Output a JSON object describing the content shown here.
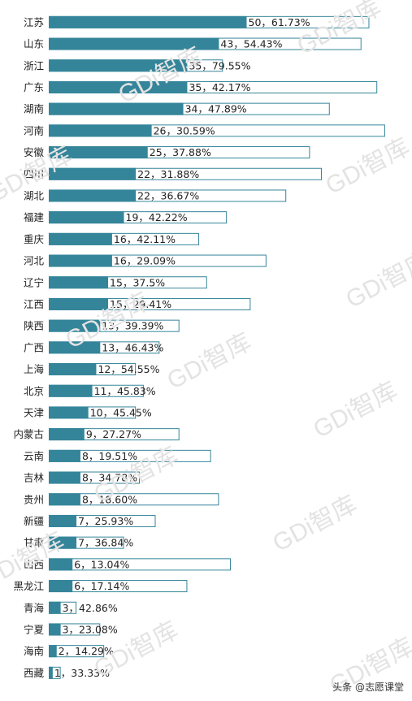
{
  "chart_data": {
    "type": "bar",
    "orientation": "horizontal",
    "categories": [
      "江苏",
      "山东",
      "浙江",
      "广东",
      "湖南",
      "河南",
      "安徽",
      "四川",
      "湖北",
      "福建",
      "重庆",
      "河北",
      "辽宁",
      "江西",
      "陕西",
      "广西",
      "上海",
      "北京",
      "天津",
      "内蒙古",
      "云南",
      "吉林",
      "贵州",
      "新疆",
      "甘肃",
      "山西",
      "黑龙江",
      "青海",
      "宁夏",
      "海南",
      "西藏"
    ],
    "series": [
      {
        "values": [
          50,
          43,
          35,
          35,
          34,
          26,
          25,
          22,
          22,
          19,
          16,
          16,
          15,
          15,
          13,
          13,
          12,
          11,
          10,
          9,
          8,
          8,
          8,
          7,
          7,
          6,
          6,
          3,
          3,
          2,
          1
        ]
      },
      {
        "values": [
          81,
          79,
          44,
          83,
          71,
          85,
          66,
          69,
          60,
          45,
          38,
          55,
          40,
          51,
          33,
          28,
          22,
          24,
          22,
          33,
          41,
          23,
          43,
          27,
          19,
          46,
          35,
          7,
          13,
          14,
          3
        ]
      }
    ],
    "data_labels": [
      "50，61.73%",
      "43，54.43%",
      "35，79.55%",
      "35，42.17%",
      "34，47.89%",
      "26，30.59%",
      "25，37.88%",
      "22，31.88%",
      "22，36.67%",
      "19，42.22%",
      "16，42.11%",
      "16，29.09%",
      "15，37.5%",
      "15，29.41%",
      "13，39.39%",
      "13，46.43%",
      "12，54.55%",
      "11，45.83%",
      "10，45.45%",
      "9，27.27%",
      "8，19.51%",
      "8，34.78%",
      "8，18.60%",
      "7，25.93%",
      "7，36.84%",
      "6，13.04%",
      "6，17.14%",
      "3，42.86%",
      "3，23.08%",
      "2，14.29%",
      "1，33.33%"
    ],
    "xlim": [
      0,
      85
    ],
    "grid": false,
    "legend": "none",
    "colors": {
      "filled": "#35859a",
      "outline": "#35859a",
      "label": "#222222"
    }
  },
  "watermark_text": "GDi智库",
  "footer_text": "头条 @志愿课堂"
}
